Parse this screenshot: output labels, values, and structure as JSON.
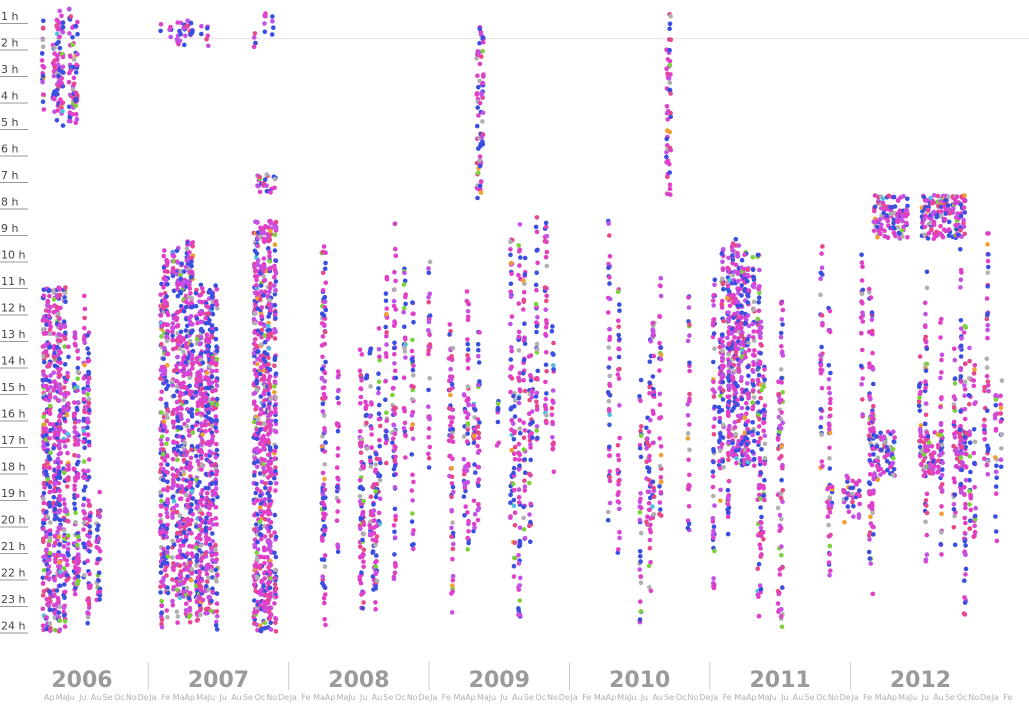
{
  "chart_data": {
    "type": "scatter",
    "title": "",
    "xlabel": "",
    "ylabel": "",
    "y_tick_labels": [
      "1 h",
      "2 h",
      "3 h",
      "4 h",
      "5 h",
      "6 h",
      "7 h",
      "8 h",
      "9 h",
      "10 h",
      "11 h",
      "12 h",
      "13 h",
      "14 h",
      "15 h",
      "16 h",
      "17 h",
      "18 h",
      "19 h",
      "20 h",
      "21 h",
      "22 h",
      "23 h",
      "24 h"
    ],
    "ylim": [
      0.5,
      24
    ],
    "year_labels": [
      "2006",
      "2007",
      "2008",
      "2009",
      "2010",
      "2011",
      "2012"
    ],
    "month_tick_labels": [
      "Ap",
      "Ma",
      "Ju",
      "Ju",
      "Au",
      "Se",
      "Oc",
      "No",
      "De",
      "Ja",
      "Fe",
      "Ma",
      "Ap",
      "Ma",
      "Ju",
      "Ju",
      "Au",
      "Se",
      "Oc",
      "No",
      "De",
      "Ja",
      "Fe",
      "Ma",
      "Ap",
      "Ma",
      "Ju",
      "Ju",
      "Au",
      "Se",
      "Oc",
      "No",
      "De",
      "Ja",
      "Fe",
      "Ma",
      "Ap",
      "Ma",
      "Ju",
      "Ju",
      "Au",
      "Se",
      "Oc",
      "No",
      "De",
      "Ja",
      "Fe",
      "Ma",
      "Ap",
      "Ma",
      "Ju",
      "Ju",
      "Au",
      "Se",
      "Oc",
      "No",
      "De",
      "Ja",
      "Fe",
      "Ma",
      "Ap",
      "Ma",
      "Ju",
      "Ju",
      "Au",
      "Se",
      "Oc",
      "No",
      "De",
      "Ja",
      "Fe",
      "Ma",
      "Ap",
      "Ma",
      "Ju",
      "Ju",
      "Au",
      "Se",
      "Oc",
      "No",
      "De",
      "Ja",
      "Fe"
    ],
    "x_start_month_index": 0,
    "x_range_months": [
      "2006-04",
      "2013-02"
    ],
    "colors": [
      "#e040c8",
      "#3a4fe0",
      "#c550e6",
      "#e6488a",
      "#b0b0b0",
      "#7cd23a",
      "#f0a030",
      "#50c0e0"
    ],
    "grid": false,
    "legend": "none",
    "density_blocks": [
      {
        "x": [
          "2006-04",
          "2006-06"
        ],
        "y": [
          11,
          24
        ],
        "density": 1.0
      },
      {
        "x": [
          "2006-04",
          "2006-07"
        ],
        "y": [
          0.5,
          5.2
        ],
        "density": 0.7
      },
      {
        "x": [
          "2006-06",
          "2006-08"
        ],
        "y": [
          11,
          24
        ],
        "density": 0.7
      },
      {
        "x": [
          "2006-08",
          "2006-09"
        ],
        "y": [
          18,
          24
        ],
        "density": 0.5
      },
      {
        "x": [
          "2007-02",
          "2007-05"
        ],
        "y": [
          9,
          24
        ],
        "density": 0.8
      },
      {
        "x": [
          "2007-05",
          "2007-07"
        ],
        "y": [
          10.5,
          24
        ],
        "density": 0.9
      },
      {
        "x": [
          "2007-02",
          "2007-07"
        ],
        "y": [
          0.5,
          2
        ],
        "density": 0.4
      },
      {
        "x": [
          "2007-10",
          "2007-12"
        ],
        "y": [
          8.5,
          24
        ],
        "density": 1.0
      },
      {
        "x": [
          "2007-10",
          "2007-12"
        ],
        "y": [
          6.7,
          7.5
        ],
        "density": 0.8
      },
      {
        "x": [
          "2007-09",
          "2007-12"
        ],
        "y": [
          0.5,
          2.2
        ],
        "density": 0.3
      },
      {
        "x": [
          "2008-01",
          "2008-12"
        ],
        "y": [
          8,
          24
        ],
        "density": 0.25
      },
      {
        "x": [
          "2008-07",
          "2008-09"
        ],
        "y": [
          16,
          24
        ],
        "density": 0.5
      },
      {
        "x": [
          "2009-01",
          "2009-12"
        ],
        "y": [
          8,
          24
        ],
        "density": 0.22
      },
      {
        "x": [
          "2009-05",
          "2009-06"
        ],
        "y": [
          0.5,
          8
        ],
        "density": 0.4
      },
      {
        "x": [
          "2010-01",
          "2010-12"
        ],
        "y": [
          8,
          24
        ],
        "density": 0.15
      },
      {
        "x": [
          "2010-09",
          "2010-10"
        ],
        "y": [
          0.5,
          8
        ],
        "density": 0.3
      },
      {
        "x": [
          "2011-01",
          "2011-03"
        ],
        "y": [
          9,
          24
        ],
        "density": 0.35
      },
      {
        "x": [
          "2011-02",
          "2011-05"
        ],
        "y": [
          9,
          18
        ],
        "density": 0.85
      },
      {
        "x": [
          "2011-05",
          "2011-12"
        ],
        "y": [
          9,
          24
        ],
        "density": 0.2
      },
      {
        "x": [
          "2011-11",
          "2012-02"
        ],
        "y": [
          18,
          20
        ],
        "density": 0.5
      },
      {
        "x": [
          "2012-02",
          "2012-12"
        ],
        "y": [
          8,
          24
        ],
        "density": 0.18
      },
      {
        "x": [
          "2012-03",
          "2012-06"
        ],
        "y": [
          7.5,
          9.2
        ],
        "density": 0.95
      },
      {
        "x": [
          "2012-07",
          "2012-11"
        ],
        "y": [
          7.5,
          9.2
        ],
        "density": 0.95
      },
      {
        "x": [
          "2012-03",
          "2012-05"
        ],
        "y": [
          16.3,
          18.3
        ],
        "density": 0.85
      },
      {
        "x": [
          "2012-07",
          "2012-09"
        ],
        "y": [
          16.3,
          18.3
        ],
        "density": 0.85
      },
      {
        "x": [
          "2012-10",
          "2012-11"
        ],
        "y": [
          16.3,
          18.3
        ],
        "density": 0.8
      },
      {
        "x": [
          "2012-11",
          "2013-02"
        ],
        "y": [
          8.5,
          22
        ],
        "density": 0.12
      }
    ]
  }
}
